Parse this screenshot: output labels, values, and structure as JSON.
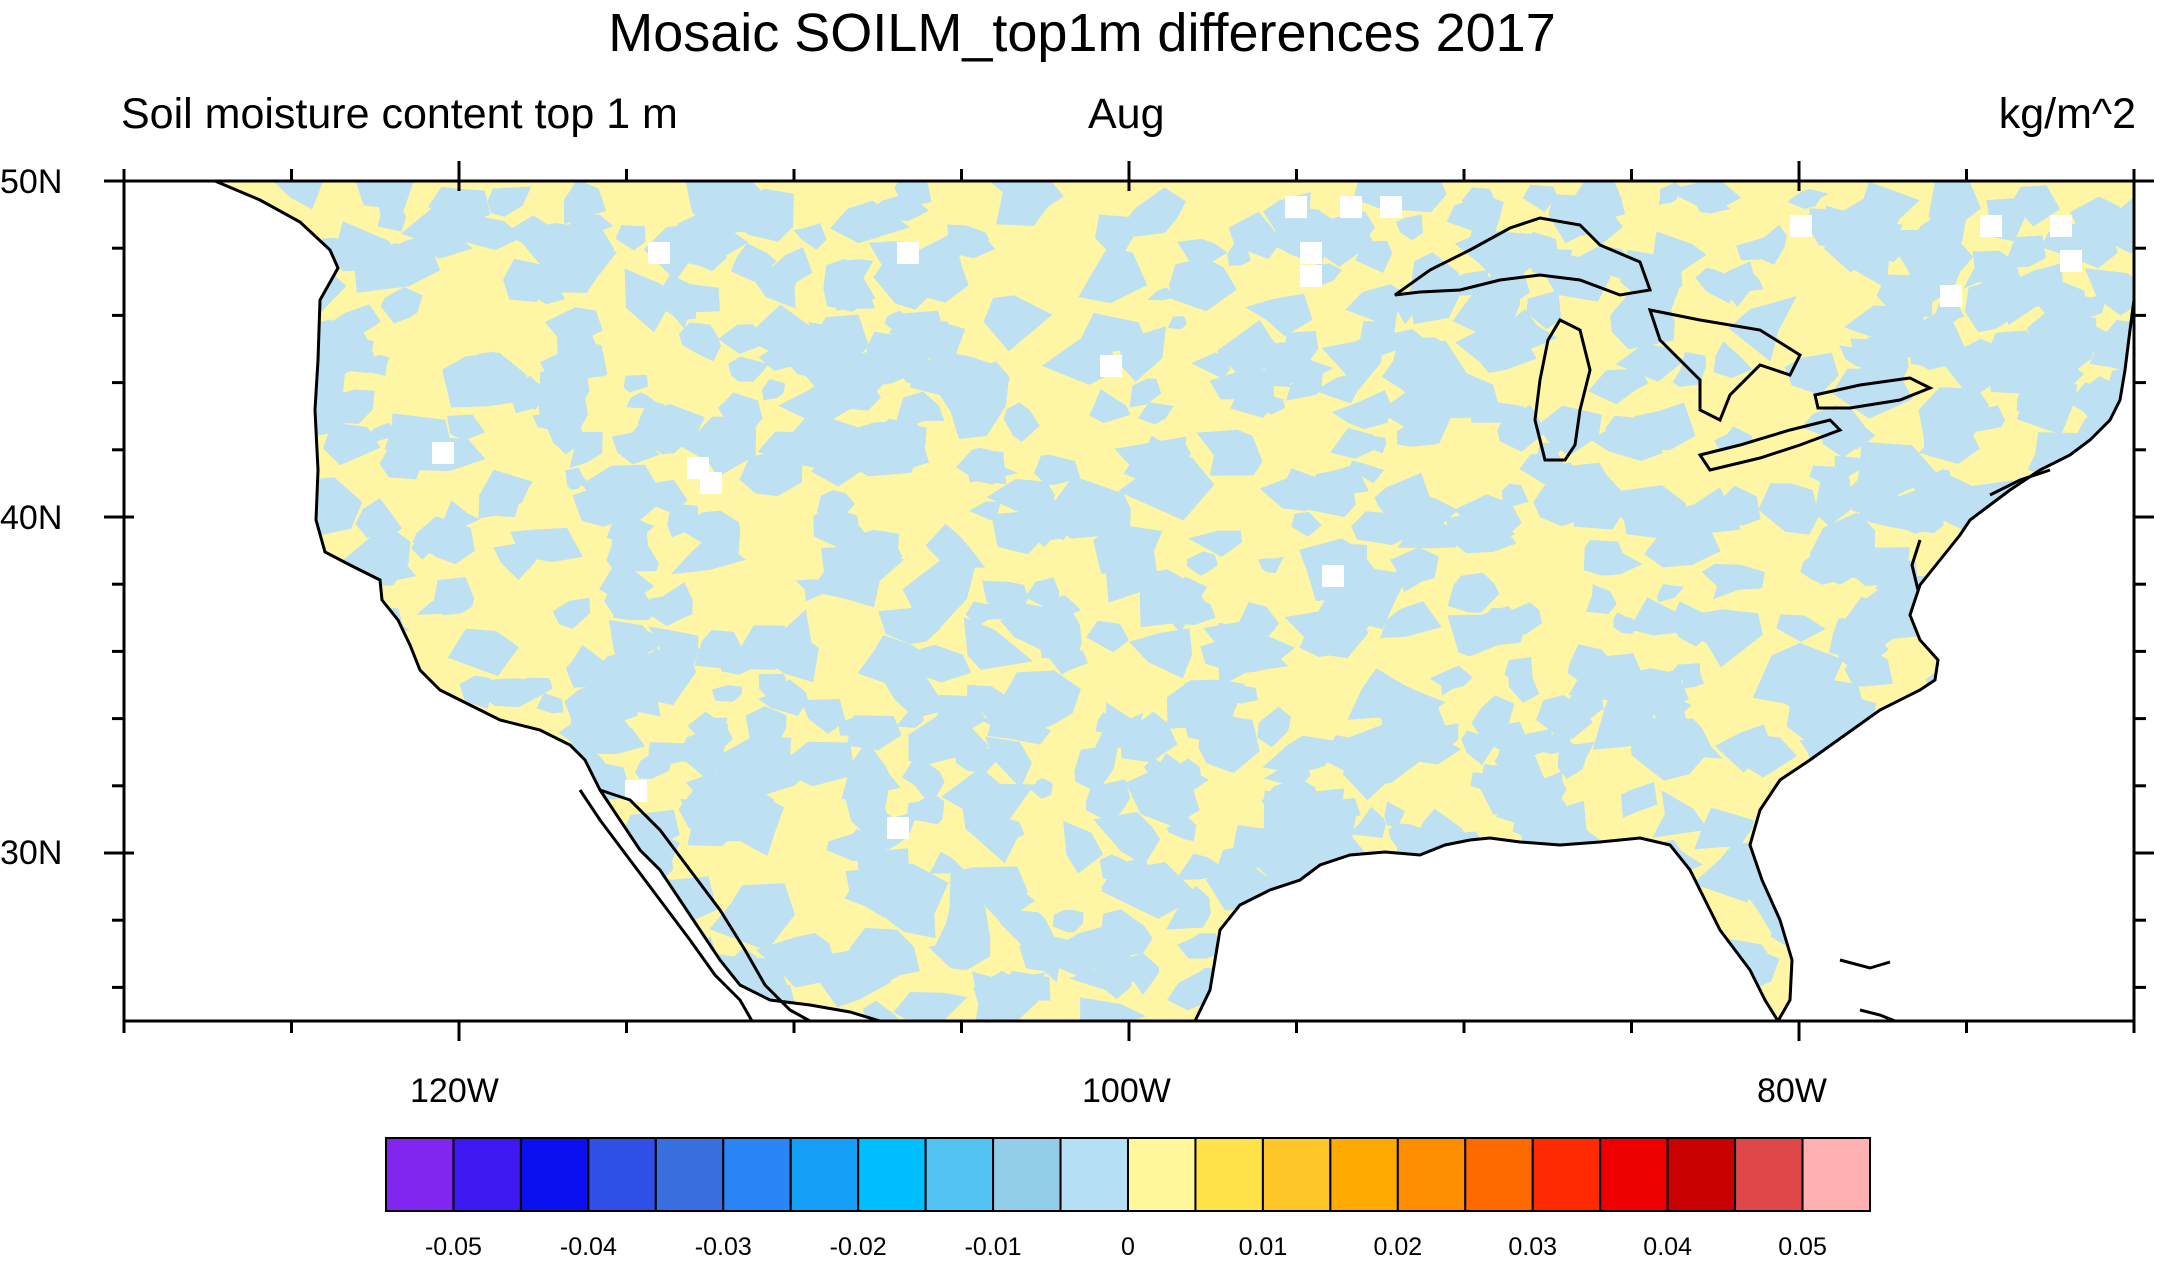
{
  "title": "Mosaic SOILM_top1m differences 2017",
  "subtitle_left": "Soil moisture content top 1 m",
  "subtitle_center": "Aug",
  "subtitle_right": "kg/m^2",
  "lat_labels": [
    "50N",
    "40N",
    "30N"
  ],
  "lon_labels": [
    "120W",
    "100W",
    "80W"
  ],
  "colorbar": {
    "colors": [
      "#8026f0",
      "#3d18f0",
      "#0a10f0",
      "#2e50e6",
      "#3a6fe0",
      "#2a85f6",
      "#159ff7",
      "#00bfff",
      "#52c2f2",
      "#92cde9",
      "#b5e0f5",
      "#fff79a",
      "#ffe14a",
      "#ffc629",
      "#ffaa00",
      "#ff8d00",
      "#ff6a00",
      "#ff2a00",
      "#ee0000",
      "#c80000",
      "#de4848",
      "#ffb0b0"
    ],
    "tick_labels": [
      "-0.05",
      "-0.04",
      "-0.03",
      "-0.02",
      "-0.01",
      "0",
      "0.01",
      "0.02",
      "0.03",
      "0.04",
      "0.05"
    ]
  },
  "field_colors": {
    "negative": "#bde0f2",
    "positive": "#fef6a4",
    "missing": "#ffffff"
  }
}
